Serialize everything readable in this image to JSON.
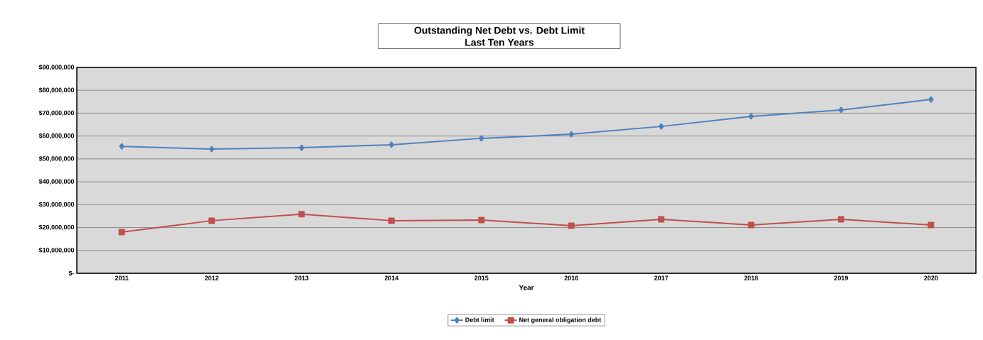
{
  "chart_data": {
    "type": "line",
    "title": "Outstanding Net Debt vs. Debt Limit",
    "subtitle": "Last Ten Years",
    "xlabel": "Year",
    "categories": [
      "2011",
      "2012",
      "2013",
      "2014",
      "2015",
      "2016",
      "2017",
      "2018",
      "2019",
      "2020"
    ],
    "series": [
      {
        "name": "Debt limit",
        "color": "#4f81bd",
        "marker": "diamond",
        "values": [
          55500000,
          54300000,
          54900000,
          56200000,
          59000000,
          60800000,
          64200000,
          68600000,
          71400000,
          76000000
        ]
      },
      {
        "name": "Net general obligation debt",
        "color": "#c0504d",
        "marker": "square",
        "values": [
          18000000,
          23000000,
          25800000,
          23000000,
          23300000,
          20800000,
          23600000,
          21100000,
          23600000,
          21100000
        ]
      }
    ],
    "ylim": [
      0,
      90000000
    ],
    "yticks": [
      {
        "value": 0,
        "label": "$-"
      },
      {
        "value": 10000000,
        "label": "$10,000,000"
      },
      {
        "value": 20000000,
        "label": "$20,000,000"
      },
      {
        "value": 30000000,
        "label": "$30,000,000"
      },
      {
        "value": 40000000,
        "label": "$40,000,000"
      },
      {
        "value": 50000000,
        "label": "$50,000,000"
      },
      {
        "value": 60000000,
        "label": "$60,000,000"
      },
      {
        "value": 70000000,
        "label": "$70,000,000"
      },
      {
        "value": 80000000,
        "label": "$80,000,000"
      },
      {
        "value": 90000000,
        "label": "$90,000,000"
      }
    ],
    "grid": "y",
    "legend": "bottom",
    "line_style": "solid"
  }
}
